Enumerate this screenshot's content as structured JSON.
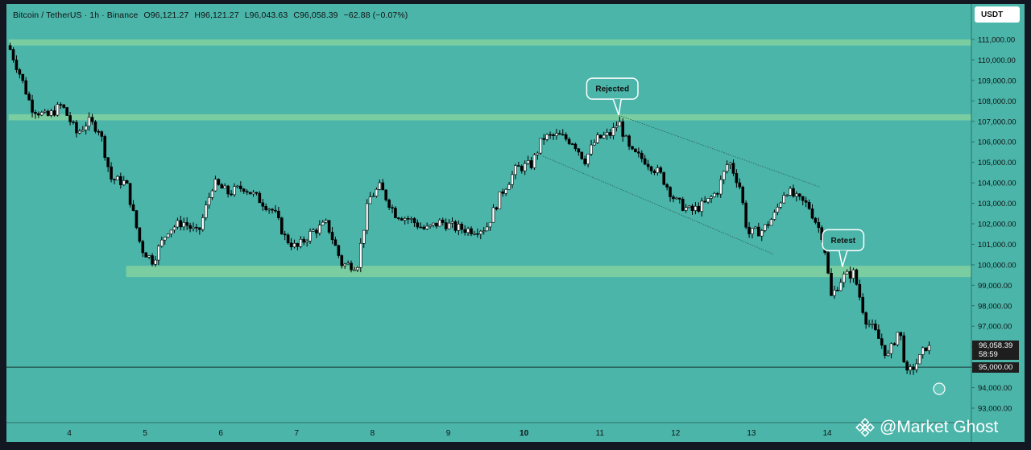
{
  "header": {
    "symbol": "Bitcoin / TetherUS · 1h · Binance",
    "open": "O96,121.27",
    "high": "H96,121.27",
    "low": "L96,043.63",
    "close": "C96,058.39",
    "change": "−62.88 (−0.07%)"
  },
  "currency_button": "USDT",
  "price_tag": {
    "price": "96,058.39",
    "countdown": "58:59"
  },
  "level_tag": "95,000.00",
  "watermark": "@Market Ghost",
  "annotations": {
    "rejected": "Rejected",
    "retest": "Retest"
  },
  "colors": {
    "background": "#4bb5aa",
    "zones": "#7ecf9f",
    "bull_candle": "#ffffff",
    "bear_candle": "#000000",
    "level_line": "#1f4f49"
  },
  "chart_data": {
    "type": "candlestick",
    "title": "Bitcoin / TetherUS · 1h · Binance",
    "ylim": [
      92500,
      111600
    ],
    "y_ticks": [
      "111,000.00",
      "110,000.00",
      "109,000.00",
      "108,000.00",
      "107,000.00",
      "106,000.00",
      "105,000.00",
      "104,000.00",
      "103,000.00",
      "102,000.00",
      "101,000.00",
      "100,000.00",
      "99,000.00",
      "98,000.00",
      "97,000.00",
      "96,000.00",
      "95,000.00",
      "94,000.00",
      "93,000.00"
    ],
    "x_ticks": [
      "4",
      "5",
      "6",
      "7",
      "8",
      "9",
      "10",
      "11",
      "12",
      "13",
      "14"
    ],
    "x_tick_days": [
      4,
      5,
      6,
      7,
      8,
      9,
      10,
      11,
      12,
      13,
      14
    ],
    "x_start_day": 3.2,
    "x_end_day": 15.36,
    "horizontal_zones": [
      {
        "from": 110700,
        "to": 111000,
        "start_day": 3.2
      },
      {
        "from": 107050,
        "to": 107350,
        "start_day": 3.2
      },
      {
        "from": 99400,
        "to": 99950,
        "start_day": 4.75
      }
    ],
    "horizontal_line": 95000,
    "channel_lines": [
      {
        "points": [
          [
            11.25,
            107300
          ],
          [
            13.9,
            103800
          ]
        ]
      },
      {
        "points": [
          [
            10.25,
            105300
          ],
          [
            13.3,
            100500
          ]
        ]
      }
    ],
    "callouts": [
      {
        "text": "Rejected",
        "at": [
          11.25,
          107300
        ]
      },
      {
        "text": "Retest",
        "at": [
          14.2,
          99900
        ]
      }
    ],
    "price_path": [
      [
        3.2,
        110700
      ],
      [
        3.35,
        109300
      ],
      [
        3.5,
        107700
      ],
      [
        3.7,
        107200
      ],
      [
        3.9,
        107800
      ],
      [
        4.1,
        106400
      ],
      [
        4.25,
        107000
      ],
      [
        4.4,
        106600
      ],
      [
        4.55,
        104200
      ],
      [
        4.75,
        104000
      ],
      [
        4.95,
        100800
      ],
      [
        5.1,
        100200
      ],
      [
        5.3,
        101700
      ],
      [
        5.5,
        102100
      ],
      [
        5.7,
        101500
      ],
      [
        5.9,
        104000
      ],
      [
        6.1,
        103500
      ],
      [
        6.3,
        103800
      ],
      [
        6.5,
        103200
      ],
      [
        6.7,
        102600
      ],
      [
        6.85,
        101300
      ],
      [
        7.0,
        100800
      ],
      [
        7.2,
        101600
      ],
      [
        7.4,
        102000
      ],
      [
        7.6,
        100000
      ],
      [
        7.8,
        100000
      ],
      [
        7.95,
        103200
      ],
      [
        8.1,
        103800
      ],
      [
        8.3,
        102500
      ],
      [
        8.5,
        102200
      ],
      [
        8.7,
        101700
      ],
      [
        8.9,
        102100
      ],
      [
        9.1,
        101800
      ],
      [
        9.3,
        101700
      ],
      [
        9.5,
        101800
      ],
      [
        9.7,
        103500
      ],
      [
        9.9,
        104700
      ],
      [
        10.1,
        104900
      ],
      [
        10.25,
        106200
      ],
      [
        10.45,
        106300
      ],
      [
        10.65,
        106000
      ],
      [
        10.8,
        105100
      ],
      [
        10.95,
        106100
      ],
      [
        11.15,
        106400
      ],
      [
        11.25,
        107000
      ],
      [
        11.4,
        105500
      ],
      [
        11.6,
        105100
      ],
      [
        11.8,
        104400
      ],
      [
        12.0,
        103100
      ],
      [
        12.2,
        102600
      ],
      [
        12.4,
        103000
      ],
      [
        12.55,
        103600
      ],
      [
        12.7,
        105100
      ],
      [
        12.85,
        103800
      ],
      [
        12.95,
        101500
      ],
      [
        13.15,
        101700
      ],
      [
        13.3,
        102400
      ],
      [
        13.45,
        103700
      ],
      [
        13.6,
        103200
      ],
      [
        13.75,
        102900
      ],
      [
        13.95,
        101300
      ],
      [
        14.05,
        98400
      ],
      [
        14.2,
        99400
      ],
      [
        14.35,
        99600
      ],
      [
        14.5,
        97400
      ],
      [
        14.65,
        96600
      ],
      [
        14.8,
        95500
      ],
      [
        14.95,
        96900
      ],
      [
        15.05,
        94600
      ],
      [
        15.2,
        95300
      ],
      [
        15.3,
        96000
      ],
      [
        15.36,
        96058
      ]
    ],
    "series": [
      {
        "name": "Bitcoin / TetherUS",
        "last": 96058.39
      }
    ]
  }
}
